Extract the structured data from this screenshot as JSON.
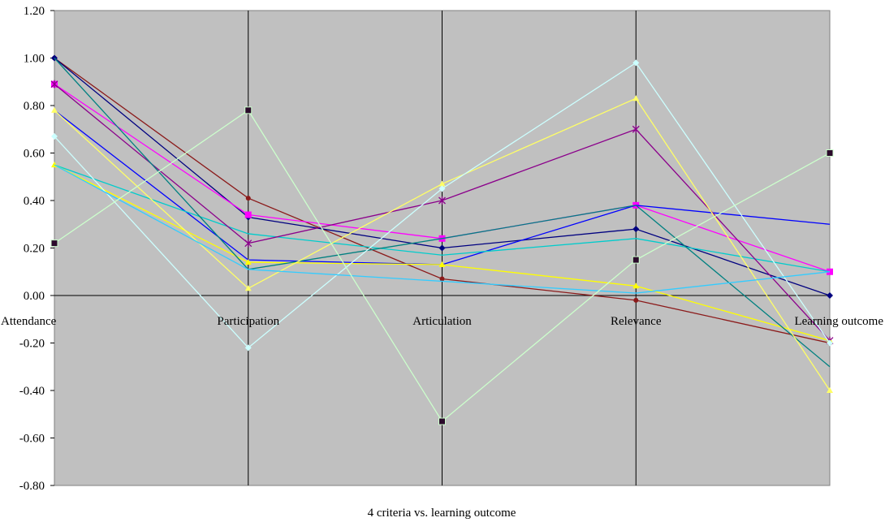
{
  "chart_data": {
    "type": "line",
    "title": "",
    "xlabel": "4 criteria vs. learning outcome",
    "ylabel": "",
    "categories": [
      "Attendance",
      "Participation",
      "Articulation",
      "Relevance",
      "Learning outcome"
    ],
    "ylim": [
      -0.8,
      1.2
    ],
    "yticks": [
      "1.20",
      "1.00",
      "0.80",
      "0.60",
      "0.40",
      "0.20",
      "0.00",
      "-0.20",
      "-0.40",
      "-0.60",
      "-0.80"
    ],
    "ytick_values": [
      1.2,
      1.0,
      0.8,
      0.6,
      0.4,
      0.2,
      0.0,
      -0.2,
      -0.4,
      -0.6,
      -0.8
    ],
    "grid": "vertical lines at categories",
    "plot_background": "#c0c0c0",
    "series": [
      {
        "color": "#8b1a1a",
        "marker": "circle",
        "values": [
          1.0,
          0.41,
          0.07,
          -0.02,
          -0.2
        ]
      },
      {
        "color": "#000080",
        "marker": "diamond",
        "values": [
          1.0,
          0.33,
          0.2,
          0.28,
          0.0
        ]
      },
      {
        "color": "#ff00ff",
        "marker": "square",
        "values": [
          0.89,
          0.34,
          0.24,
          0.38,
          0.1
        ]
      },
      {
        "color": "#0000ff",
        "marker": "none",
        "values": [
          0.78,
          0.15,
          0.13,
          0.38,
          0.3
        ]
      },
      {
        "color": "#00cccc",
        "marker": "none",
        "values": [
          0.55,
          0.26,
          0.17,
          0.24,
          0.1
        ]
      },
      {
        "color": "#ffff00",
        "marker": "triangle",
        "values": [
          0.55,
          0.14,
          0.13,
          0.04,
          -0.19
        ]
      },
      {
        "color": "#8b008b",
        "marker": "star",
        "values": [
          0.89,
          0.22,
          0.4,
          0.7,
          -0.19
        ]
      },
      {
        "color": "#008080",
        "marker": "none",
        "values": [
          1.0,
          0.11,
          0.24,
          0.38,
          -0.3
        ]
      },
      {
        "color": "#ffff66",
        "marker": "triangle",
        "values": [
          0.78,
          0.03,
          0.47,
          0.83,
          -0.4
        ]
      },
      {
        "color": "#ccffff",
        "marker": "diamond",
        "values": [
          0.67,
          -0.22,
          0.45,
          0.98,
          -0.2
        ]
      },
      {
        "color": "#33ccff",
        "marker": "none",
        "values": [
          0.55,
          0.11,
          0.06,
          0.01,
          0.1
        ]
      },
      {
        "color": "#ccffcc",
        "marker": "square-dark",
        "values": [
          0.22,
          0.78,
          -0.53,
          0.15,
          0.6
        ]
      }
    ]
  }
}
